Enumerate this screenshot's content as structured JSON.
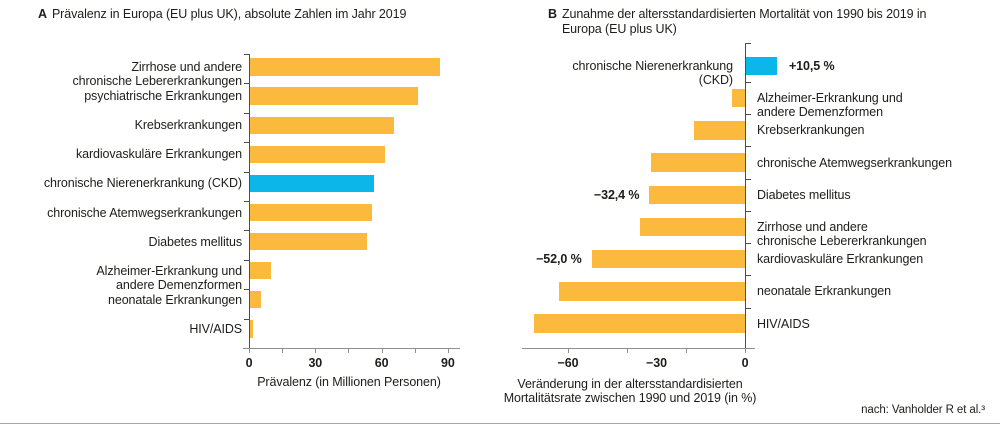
{
  "figure": {
    "footer_source": "nach: Vanholder R et al.³"
  },
  "colors": {
    "bar": "#fbb93e",
    "highlight": "#0db6e9",
    "value_axis": "#8f8f8f",
    "category_axis": "#4d4d4d",
    "text": "#1d1d1b",
    "divider": "#a6a6a6"
  },
  "chart_data": [
    {
      "id": "prevalence_europe_2019",
      "type": "bar",
      "orientation": "horizontal",
      "panel_letter": "A",
      "title": "Prävalenz in Europa (EU plus UK), absolute Zahlen im Jahr 2019",
      "title_lines": [
        "Prävalenz in Europa (EU plus UK), absolute Zahlen im Jahr 2019"
      ],
      "xlabel": "Prävalenz (in Millionen Personen)",
      "xlim": [
        0,
        95
      ],
      "xticks_labeled": [
        0,
        30,
        60,
        90
      ],
      "xtick_labels": [
        "0",
        "30",
        "60",
        "90"
      ],
      "tick_marks": [
        0,
        15,
        30,
        45,
        60,
        75,
        90
      ],
      "grid": false,
      "categories": [
        "Zirrhose und andere chronische Lebererkrankungen",
        "psychiatrische Erkrankungen",
        "Krebserkrankungen",
        "kardiovaskuläre Erkrankungen",
        "chronische Nierenerkrankung (CKD)",
        "chronische Atemwegserkrankungen",
        "Diabetes mellitus",
        "Alzheimer-Erkrankung und andere Demenzformen",
        "neonatale Erkrankungen",
        "HIV/AIDS"
      ],
      "label_lines": [
        [
          "Zirrhose und andere",
          "chronische Lebererkrankungen"
        ],
        [
          "psychiatrische Erkrankungen"
        ],
        [
          "Krebserkrankungen"
        ],
        [
          "kardiovaskuläre Erkrankungen"
        ],
        [
          "chronische Nierenerkrankung (CKD)"
        ],
        [
          "chronische Atemwegserkrankungen"
        ],
        [
          "Diabetes mellitus"
        ],
        [
          "Alzheimer-Erkrankung und",
          "andere Demenzformen"
        ],
        [
          "neonatale Erkrankungen"
        ],
        [
          "HIV/AIDS"
        ]
      ],
      "values": [
        86,
        76,
        65,
        61,
        56,
        55,
        53,
        9.5,
        5,
        1.5
      ],
      "highlight_index": 4
    },
    {
      "id": "mortality_change_1990_2019",
      "type": "bar",
      "orientation": "horizontal",
      "panel_letter": "B",
      "title": "Zunahme der altersstandardisierten Mortalität von 1990 bis 2019 in Europa (EU plus UK)",
      "title_lines": [
        "Zunahme der altersstandardisierten Mortalität von 1990 bis 2019 in",
        "Europa (EU plus UK)"
      ],
      "xlabel": "Veränderung in der altersstandardisierten Mortalitätsrate zwischen 1990 und 2019 (in %)",
      "xlabel_lines": [
        "Veränderung in der altersstandardisierten",
        "Mortalitätsrate zwischen 1990 und 2019 (in %)"
      ],
      "xlim": [
        -76,
        3
      ],
      "xticks_labeled": [
        -60,
        -30,
        0
      ],
      "xtick_labels": [
        "−60",
        "−30",
        "0"
      ],
      "tick_marks": [
        -60,
        -40,
        -20,
        0
      ],
      "grid": false,
      "categories": [
        "chronische Nierenerkrankung (CKD)",
        "Alzheimer-Erkrankung und andere Demenzformen",
        "Krebserkrankungen",
        "chronische Atemwegserkrankungen",
        "Diabetes mellitus",
        "Zirrhose und andere chronische Lebererkrankungen",
        "kardiovaskuläre Erkrankungen",
        "neonatale Erkrankungen",
        "HIV/AIDS"
      ],
      "label_lines": [
        [
          "chronische Nierenerkrankung",
          "(CKD)"
        ],
        [
          "Alzheimer-Erkrankung und",
          "andere Demenzformen"
        ],
        [
          "Krebserkrankungen"
        ],
        [
          "chronische Atemwegserkrankungen"
        ],
        [
          "Diabetes mellitus"
        ],
        [
          "Zirrhose und andere",
          "chronische Lebererkrankungen"
        ],
        [
          "kardiovaskuläre Erkrankungen"
        ],
        [
          "neonatale Erkrankungen"
        ],
        [
          "HIV/AIDS"
        ]
      ],
      "values": [
        10.5,
        -4.4,
        -17.2,
        -31.7,
        -32.4,
        -35.5,
        -52.0,
        -63.0,
        -71.5
      ],
      "highlight_index": 0,
      "left_label_indices": [
        0
      ],
      "annotations": [
        {
          "index": 0,
          "text": "+10,5 %"
        },
        {
          "index": 4,
          "text": "−32,4 %"
        },
        {
          "index": 6,
          "text": "−52,0 %"
        }
      ]
    }
  ]
}
